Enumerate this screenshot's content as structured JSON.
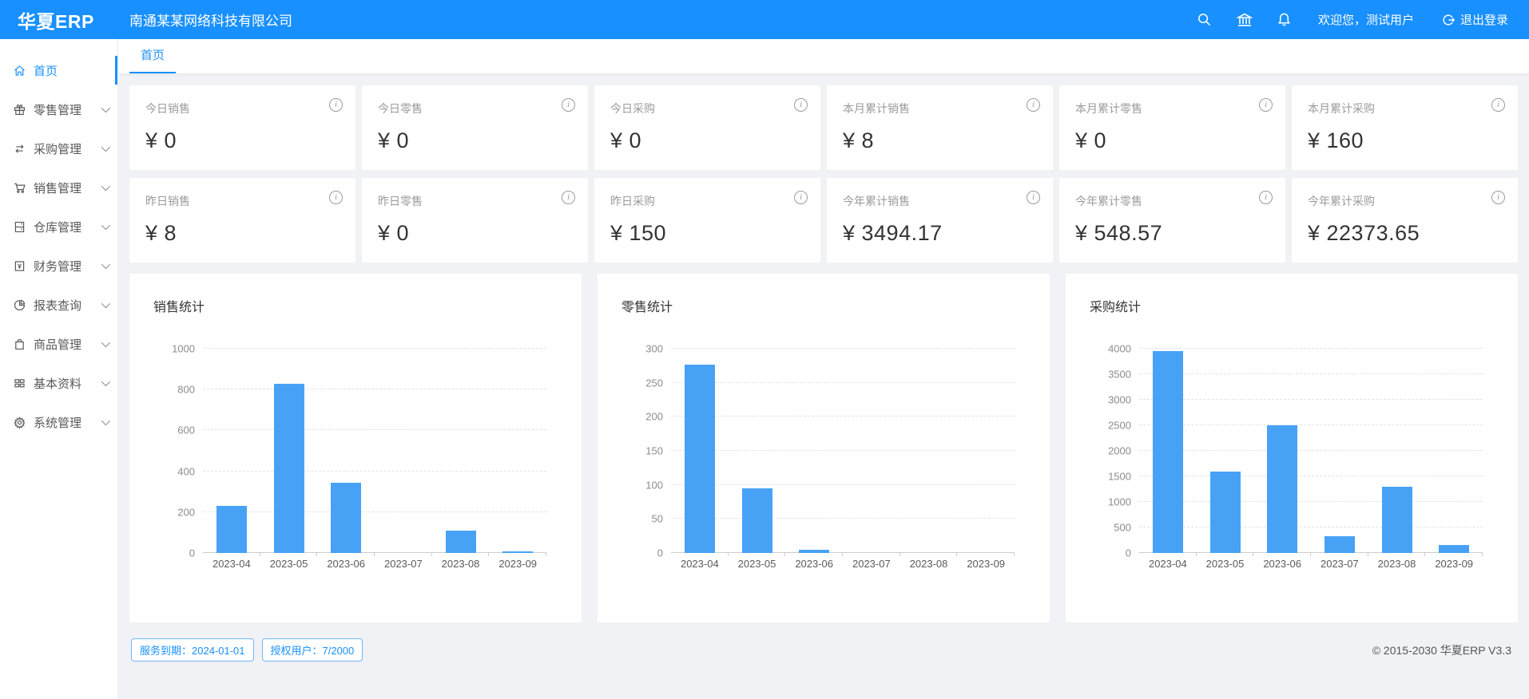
{
  "colors": {
    "accent": "#1890ff",
    "bar": "#47a2f6"
  },
  "header": {
    "logo": "华夏ERP",
    "company": "南通某某网络科技有限公司",
    "welcome": "欢迎您，测试用户",
    "logout_label": "退出登录",
    "icons": [
      "search-icon",
      "bank-icon",
      "bell-icon",
      "logout-icon"
    ]
  },
  "sidebar": {
    "items": [
      {
        "label": "首页",
        "icon": "home-icon",
        "active": true,
        "expandable": false
      },
      {
        "label": "零售管理",
        "icon": "gift-icon",
        "active": false,
        "expandable": true
      },
      {
        "label": "采购管理",
        "icon": "swap-icon",
        "active": false,
        "expandable": true
      },
      {
        "label": "销售管理",
        "icon": "cart-icon",
        "active": false,
        "expandable": true
      },
      {
        "label": "仓库管理",
        "icon": "storage-icon",
        "active": false,
        "expandable": true
      },
      {
        "label": "财务管理",
        "icon": "ledger-icon",
        "active": false,
        "expandable": true
      },
      {
        "label": "报表查询",
        "icon": "pie-chart-icon",
        "active": false,
        "expandable": true
      },
      {
        "label": "商品管理",
        "icon": "bag-icon",
        "active": false,
        "expandable": true
      },
      {
        "label": "基本资料",
        "icon": "grid-icon",
        "active": false,
        "expandable": true
      },
      {
        "label": "系统管理",
        "icon": "gear-icon",
        "active": false,
        "expandable": true
      }
    ]
  },
  "tabs": [
    {
      "label": "首页",
      "active": true
    }
  ],
  "stat_cards": [
    {
      "label": "今日销售",
      "value": "¥ 0"
    },
    {
      "label": "今日零售",
      "value": "¥ 0"
    },
    {
      "label": "今日采购",
      "value": "¥ 0"
    },
    {
      "label": "本月累计销售",
      "value": "¥ 8"
    },
    {
      "label": "本月累计零售",
      "value": "¥ 0"
    },
    {
      "label": "本月累计采购",
      "value": "¥ 160"
    },
    {
      "label": "昨日销售",
      "value": "¥ 8"
    },
    {
      "label": "昨日零售",
      "value": "¥ 0"
    },
    {
      "label": "昨日采购",
      "value": "¥ 150"
    },
    {
      "label": "今年累计销售",
      "value": "¥ 3494.17"
    },
    {
      "label": "今年累计零售",
      "value": "¥ 548.57"
    },
    {
      "label": "今年累计采购",
      "value": "¥ 22373.65"
    }
  ],
  "chart_data": [
    {
      "type": "bar",
      "title": "销售统计",
      "categories": [
        "2023-04",
        "2023-05",
        "2023-06",
        "2023-07",
        "2023-08",
        "2023-09"
      ],
      "values": [
        230,
        830,
        345,
        0,
        110,
        8
      ],
      "ylim": [
        0,
        1000
      ],
      "yticks": [
        0,
        200,
        400,
        600,
        800,
        1000
      ],
      "grid": "dashed-horizontal",
      "legend": "none"
    },
    {
      "type": "bar",
      "title": "零售统计",
      "categories": [
        "2023-04",
        "2023-05",
        "2023-06",
        "2023-07",
        "2023-08",
        "2023-09"
      ],
      "values": [
        277,
        95,
        5,
        0,
        0,
        0
      ],
      "ylim": [
        0,
        300
      ],
      "yticks": [
        0,
        50,
        100,
        150,
        200,
        250,
        300
      ],
      "grid": "dashed-horizontal",
      "legend": "none"
    },
    {
      "type": "bar",
      "title": "采购统计",
      "categories": [
        "2023-04",
        "2023-05",
        "2023-06",
        "2023-07",
        "2023-08",
        "2023-09"
      ],
      "values": [
        3950,
        1590,
        2500,
        330,
        1300,
        160
      ],
      "ylim": [
        0,
        4000
      ],
      "yticks": [
        0,
        500,
        1000,
        1500,
        2000,
        2500,
        3000,
        3500,
        4000
      ],
      "grid": "dashed-horizontal",
      "legend": "none"
    }
  ],
  "footer": {
    "badges": [
      "服务到期：2024-01-01",
      "授权用户：7/2000"
    ],
    "copyright": "© 2015-2030 华夏ERP V3.3"
  }
}
